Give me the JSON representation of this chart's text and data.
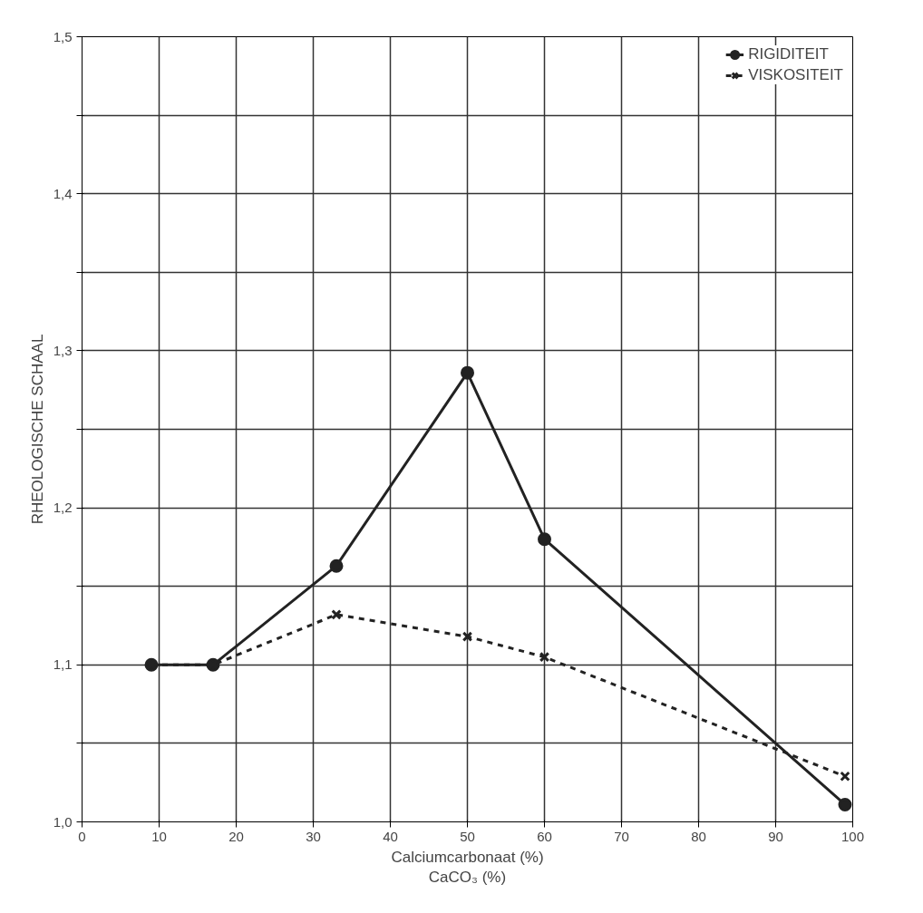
{
  "chart_data": {
    "type": "line",
    "xlabel": "Calciumcarbonaat (%)\nCaCO₃ (%)",
    "ylabel": "RHEOLOGISCHE SCHAAL",
    "xlim": [
      0,
      100
    ],
    "ylim": [
      1.0,
      1.5
    ],
    "xticks": [
      0,
      10,
      20,
      30,
      40,
      50,
      60,
      70,
      80,
      90,
      100
    ],
    "yticks": [
      {
        "value": 1.0,
        "label": "1,0"
      },
      {
        "value": 1.05,
        "label": null
      },
      {
        "value": 1.1,
        "label": "1,1"
      },
      {
        "value": 1.15,
        "label": null
      },
      {
        "value": 1.2,
        "label": "1,2"
      },
      {
        "value": 1.25,
        "label": null
      },
      {
        "value": 1.3,
        "label": "1,3"
      },
      {
        "value": 1.35,
        "label": null
      },
      {
        "value": 1.4,
        "label": "1,4"
      },
      {
        "value": 1.45,
        "label": null
      },
      {
        "value": 1.5,
        "label": "1,5"
      }
    ],
    "grid": true,
    "legend": "top right",
    "series": [
      {
        "name": "RIGIDITEIT",
        "color": "#222222",
        "marker": "circle",
        "x": [
          9,
          17,
          33,
          50,
          60,
          99
        ],
        "values": [
          1.1,
          1.1,
          1.163,
          1.286,
          1.18,
          1.011
        ]
      },
      {
        "name": "VISKOSITEIT",
        "color": "#222222",
        "marker": "cross",
        "line_style": "dashed",
        "x": [
          9,
          17,
          33,
          50,
          60,
          99
        ],
        "values": [
          1.1,
          1.1,
          1.132,
          1.118,
          1.105,
          1.029
        ]
      }
    ]
  }
}
